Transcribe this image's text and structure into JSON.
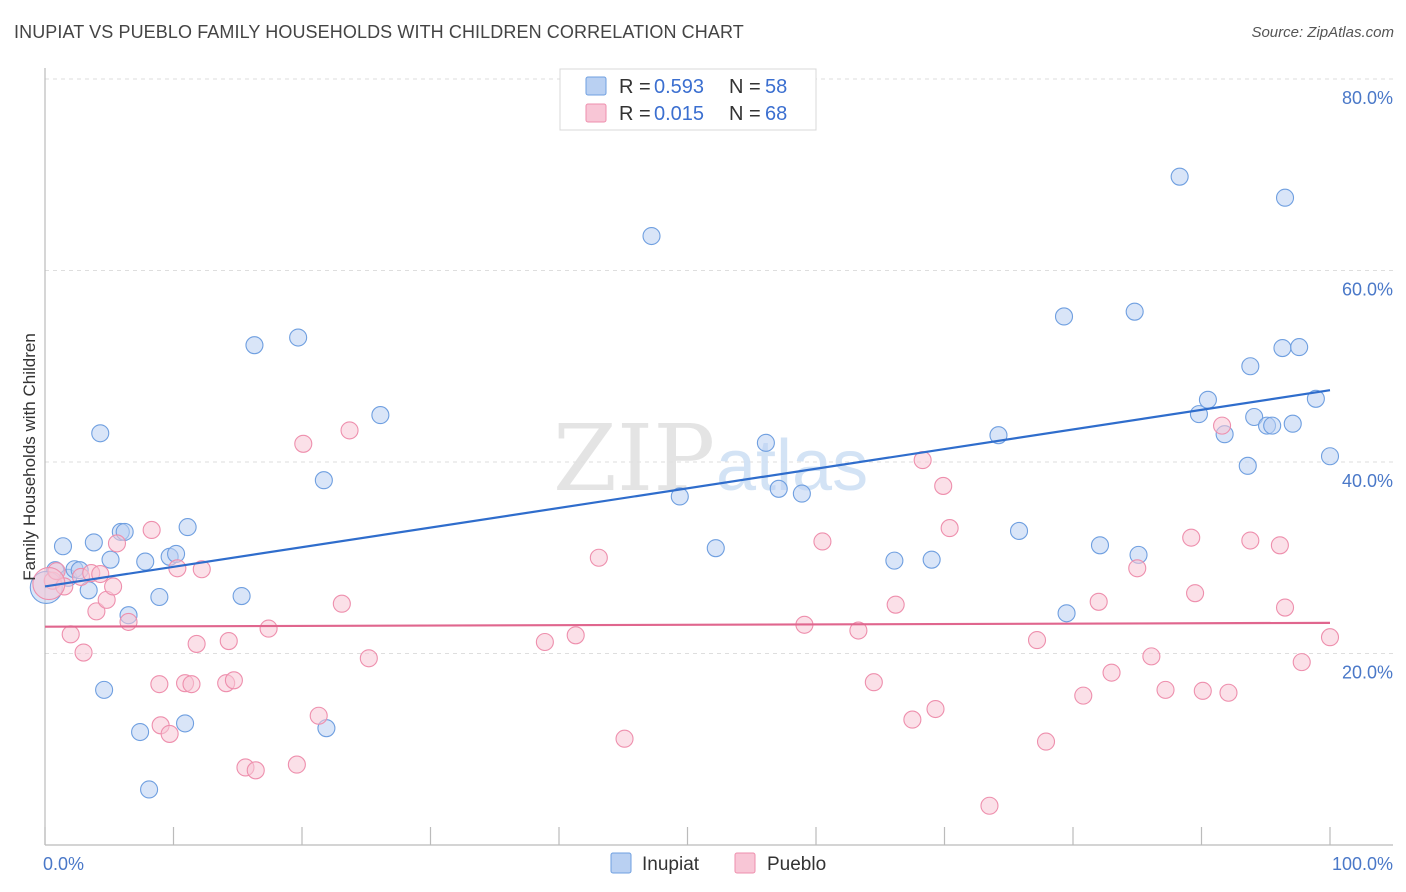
{
  "title": "INUPIAT VS PUEBLO FAMILY HOUSEHOLDS WITH CHILDREN CORRELATION CHART",
  "source": "Source: ZipAtlas.com",
  "watermark": {
    "zip": "ZIP",
    "atlas": "atlas"
  },
  "legend": {
    "r_label": "R =",
    "n_label": "N =",
    "rows": [
      {
        "name": "Inupiat",
        "r": "0.593",
        "n": "58"
      },
      {
        "name": "Pueblo",
        "r": "0.015",
        "n": "68"
      }
    ]
  },
  "chart_data": {
    "type": "scatter",
    "title": "INUPIAT VS PUEBLO FAMILY HOUSEHOLDS WITH CHILDREN CORRELATION CHART",
    "xlabel": "",
    "ylabel": "Family Households with Children",
    "xlim": [
      0,
      100
    ],
    "ylim": [
      0,
      80
    ],
    "x_tick_labels": {
      "min": "0.0%",
      "max": "100.0%"
    },
    "y_ticks": [
      {
        "value": 20,
        "label": "20.0%"
      },
      {
        "value": 40,
        "label": "40.0%"
      },
      {
        "value": 60,
        "label": "60.0%"
      },
      {
        "value": 80,
        "label": "80.0%"
      }
    ],
    "grid": true,
    "legend_position": "top-center",
    "series": [
      {
        "name": "Inupiat",
        "color": "#6f9fe0",
        "fill": "#b9d0f2",
        "trend": {
          "x0": 0,
          "y0": 27.0,
          "x1": 100,
          "y1": 47.5,
          "color": "#2f6dcc"
        },
        "points": [
          [
            0.8,
            28.7
          ],
          [
            1.4,
            31.2
          ],
          [
            1.8,
            27.9
          ],
          [
            2.3,
            28.8
          ],
          [
            2.7,
            28.7
          ],
          [
            3.4,
            26.6
          ],
          [
            3.8,
            31.6
          ],
          [
            4.3,
            43.0
          ],
          [
            4.6,
            16.2
          ],
          [
            5.1,
            29.8
          ],
          [
            5.9,
            32.7
          ],
          [
            6.2,
            32.7
          ],
          [
            6.5,
            24.0
          ],
          [
            7.4,
            11.8
          ],
          [
            7.8,
            29.6
          ],
          [
            8.1,
            5.8
          ],
          [
            8.9,
            25.9
          ],
          [
            9.7,
            30.1
          ],
          [
            10.2,
            30.4
          ],
          [
            10.9,
            12.7
          ],
          [
            11.1,
            33.2
          ],
          [
            15.3,
            26.0
          ],
          [
            16.3,
            52.2
          ],
          [
            19.7,
            53.0
          ],
          [
            21.7,
            38.1
          ],
          [
            21.9,
            12.2
          ],
          [
            26.1,
            44.9
          ],
          [
            47.2,
            63.6
          ],
          [
            49.4,
            36.4
          ],
          [
            52.2,
            31.0
          ],
          [
            56.1,
            42.0
          ],
          [
            57.1,
            37.2
          ],
          [
            58.9,
            36.7
          ],
          [
            66.1,
            29.7
          ],
          [
            69.0,
            29.8
          ],
          [
            74.2,
            42.8
          ],
          [
            75.8,
            32.8
          ],
          [
            79.3,
            55.2
          ],
          [
            79.5,
            24.2
          ],
          [
            82.1,
            31.3
          ],
          [
            84.8,
            55.7
          ],
          [
            85.1,
            30.3
          ],
          [
            88.3,
            69.8
          ],
          [
            89.8,
            45.0
          ],
          [
            90.5,
            46.5
          ],
          [
            91.8,
            42.9
          ],
          [
            93.6,
            39.6
          ],
          [
            93.8,
            50.0
          ],
          [
            94.1,
            44.7
          ],
          [
            95.1,
            43.8
          ],
          [
            95.5,
            43.8
          ],
          [
            96.3,
            51.9
          ],
          [
            96.5,
            67.6
          ],
          [
            97.1,
            44.0
          ],
          [
            97.6,
            52.0
          ],
          [
            98.9,
            46.6
          ],
          [
            100.0,
            40.6
          ],
          [
            0.1,
            26.9
          ]
        ]
      },
      {
        "name": "Pueblo",
        "color": "#ee8fad",
        "fill": "#f8c6d6",
        "trend": {
          "x0": 0,
          "y0": 22.8,
          "x1": 100,
          "y1": 23.2,
          "color": "#e0668e"
        },
        "points": [
          [
            0.6,
            27.6
          ],
          [
            0.9,
            28.6
          ],
          [
            1.5,
            27.0
          ],
          [
            2.0,
            22.0
          ],
          [
            2.8,
            28.0
          ],
          [
            3.0,
            20.1
          ],
          [
            3.6,
            28.4
          ],
          [
            4.0,
            24.4
          ],
          [
            4.3,
            28.3
          ],
          [
            4.8,
            25.6
          ],
          [
            5.3,
            27.0
          ],
          [
            5.6,
            31.5
          ],
          [
            6.5,
            23.3
          ],
          [
            8.3,
            32.9
          ],
          [
            8.9,
            16.8
          ],
          [
            9.0,
            12.5
          ],
          [
            9.7,
            11.6
          ],
          [
            10.3,
            28.9
          ],
          [
            10.9,
            16.9
          ],
          [
            11.4,
            16.8
          ],
          [
            11.8,
            21.0
          ],
          [
            12.2,
            28.8
          ],
          [
            14.1,
            16.9
          ],
          [
            14.3,
            21.3
          ],
          [
            14.7,
            17.2
          ],
          [
            15.6,
            8.1
          ],
          [
            16.4,
            7.8
          ],
          [
            17.4,
            22.6
          ],
          [
            19.6,
            8.4
          ],
          [
            20.1,
            41.9
          ],
          [
            21.3,
            13.5
          ],
          [
            23.1,
            25.2
          ],
          [
            23.7,
            43.3
          ],
          [
            25.2,
            19.5
          ],
          [
            38.9,
            21.2
          ],
          [
            41.3,
            21.9
          ],
          [
            43.1,
            30.0
          ],
          [
            45.1,
            11.1
          ],
          [
            59.1,
            23.0
          ],
          [
            60.5,
            31.7
          ],
          [
            63.3,
            22.4
          ],
          [
            64.5,
            17.0
          ],
          [
            66.2,
            25.1
          ],
          [
            67.5,
            13.1
          ],
          [
            68.3,
            40.2
          ],
          [
            69.3,
            14.2
          ],
          [
            69.9,
            37.5
          ],
          [
            70.4,
            33.1
          ],
          [
            73.5,
            4.1
          ],
          [
            77.2,
            21.4
          ],
          [
            77.9,
            10.8
          ],
          [
            80.8,
            15.6
          ],
          [
            82.0,
            25.4
          ],
          [
            83.0,
            18.0
          ],
          [
            85.0,
            28.9
          ],
          [
            86.1,
            19.7
          ],
          [
            87.2,
            16.2
          ],
          [
            89.2,
            32.1
          ],
          [
            89.5,
            26.3
          ],
          [
            90.1,
            16.1
          ],
          [
            91.6,
            43.8
          ],
          [
            92.1,
            15.9
          ],
          [
            93.8,
            31.8
          ],
          [
            96.1,
            31.3
          ],
          [
            96.5,
            24.8
          ],
          [
            97.8,
            19.1
          ],
          [
            100.0,
            21.7
          ],
          [
            0.3,
            27.3
          ]
        ]
      }
    ]
  }
}
